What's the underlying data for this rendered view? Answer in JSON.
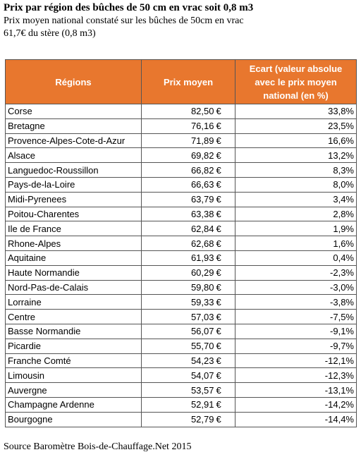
{
  "header": {
    "title": "Prix par région des bûches de 50 cm en vrac soit 0,8 m3",
    "subtitle": [
      "Prix moyen national constaté sur les bûches de 50cm en vrac",
      "61,7€ du stère (0,8 m3)"
    ]
  },
  "table": {
    "columns": [
      "Régions",
      "Prix moyen",
      "Ecart (valeur absolue avec le prix moyen national (en %)"
    ],
    "currency": "€",
    "rows": [
      [
        "Corse",
        "82,50",
        "33,8%"
      ],
      [
        "Bretagne",
        "76,16",
        "23,5%"
      ],
      [
        "Provence-Alpes-Cote-d-Azur",
        "71,89",
        "16,6%"
      ],
      [
        "Alsace",
        "69,82",
        "13,2%"
      ],
      [
        "Languedoc-Roussillon",
        "66,82",
        "8,3%"
      ],
      [
        "Pays-de-la-Loire",
        "66,63",
        "8,0%"
      ],
      [
        "Midi-Pyrenees",
        "63,79",
        "3,4%"
      ],
      [
        "Poitou-Charentes",
        "63,38",
        "2,8%"
      ],
      [
        "Ile de France",
        "62,84",
        "1,9%"
      ],
      [
        "Rhone-Alpes",
        "62,68",
        "1,6%"
      ],
      [
        "Aquitaine",
        "61,93",
        "0,4%"
      ],
      [
        "Haute Normandie",
        "60,29",
        "-2,3%"
      ],
      [
        "Nord-Pas-de-Calais",
        "59,80",
        "-3,0%"
      ],
      [
        "Lorraine",
        "59,33",
        "-3,8%"
      ],
      [
        "Centre",
        "57,03",
        "-7,5%"
      ],
      [
        "Basse Normandie",
        "56,07",
        "-9,1%"
      ],
      [
        "Picardie",
        "55,70",
        "-9,7%"
      ],
      [
        "Franche Comté",
        "54,23",
        "-12,1%"
      ],
      [
        "Limousin",
        "54,07",
        "-12,3%"
      ],
      [
        "Auvergne",
        "53,57",
        "-13,1%"
      ],
      [
        "Champagne Ardenne",
        "52,91",
        "-14,2%"
      ],
      [
        "Bourgogne",
        "52,79",
        "-14,4%"
      ]
    ]
  },
  "footer": {
    "source": "Source Baromètre Bois-de-Chauffage.Net 2015"
  }
}
